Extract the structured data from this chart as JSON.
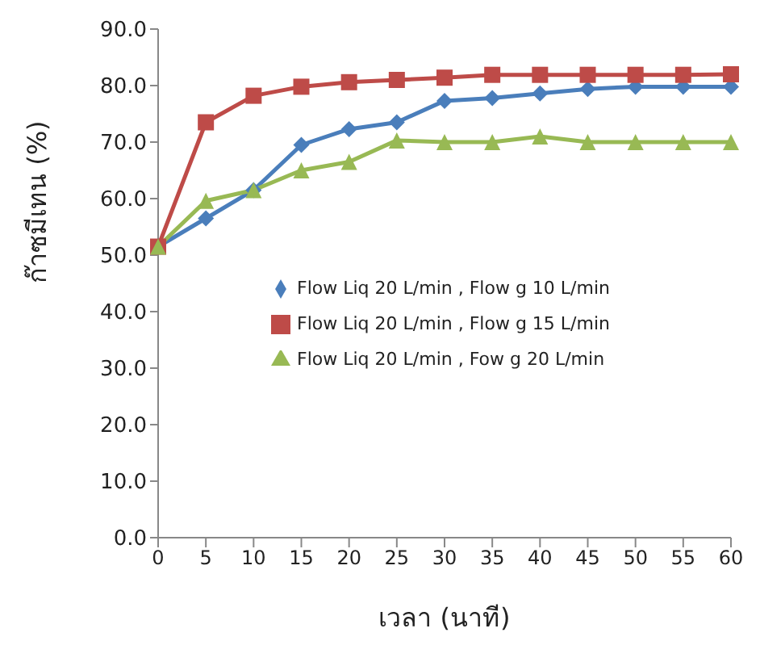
{
  "chart_data": {
    "type": "line",
    "xlabel": "เวลา (นาที)",
    "ylabel": "ก๊าซมีเทน (%)",
    "categories": [
      "0",
      "5",
      "10",
      "15",
      "20",
      "25",
      "30",
      "35",
      "40",
      "45",
      "50",
      "55",
      "60"
    ],
    "series": [
      {
        "name": "Flow Liq 20 L/min , Flow g 10 L/min",
        "color": "#4a7ebb",
        "marker": "diamond",
        "values": [
          51.5,
          56.5,
          61.5,
          69.5,
          72.3,
          73.5,
          77.3,
          77.8,
          78.6,
          79.4,
          79.8,
          79.8,
          79.8
        ]
      },
      {
        "name": "Flow Liq 20 L/min , Flow g 15 L/min",
        "color": "#be4b48",
        "marker": "square",
        "values": [
          51.5,
          73.5,
          78.2,
          79.8,
          80.6,
          81.0,
          81.4,
          81.9,
          81.9,
          81.9,
          81.9,
          81.9,
          82.0
        ]
      },
      {
        "name": "Flow Liq 20 L/min , Fow g 20 L/min",
        "color": "#98b954",
        "marker": "triangle",
        "values": [
          51.5,
          59.6,
          61.5,
          65.0,
          66.5,
          70.3,
          70.0,
          70.0,
          71.0,
          70.0,
          70.0,
          70.0,
          70.0
        ]
      }
    ],
    "ylim": [
      0,
      90
    ],
    "yticks": [
      {
        "value": 0,
        "label": "0.0"
      },
      {
        "value": 10,
        "label": "10.0"
      },
      {
        "value": 20,
        "label": "20.0"
      },
      {
        "value": 30,
        "label": "30.0"
      },
      {
        "value": 40,
        "label": "40.0"
      },
      {
        "value": 50,
        "label": "50.0"
      },
      {
        "value": 60,
        "label": "60.0"
      },
      {
        "value": 70,
        "label": "70.0"
      },
      {
        "value": 80,
        "label": "80.0"
      },
      {
        "value": 90,
        "label": "90.0"
      }
    ],
    "grid": false,
    "legend": "right",
    "line_style": "solid"
  }
}
